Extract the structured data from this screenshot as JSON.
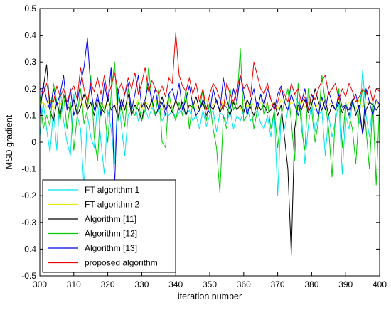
{
  "chart_data": {
    "type": "line",
    "title": "",
    "xlabel": "iteration number",
    "ylabel": "MSD gradient",
    "xlim": [
      300,
      400
    ],
    "ylim": [
      -0.5,
      0.5
    ],
    "xticks": [
      300,
      310,
      320,
      330,
      340,
      350,
      360,
      370,
      380,
      390,
      400
    ],
    "xtick_labels": [
      "300",
      "310",
      "320",
      "330",
      "340",
      "350",
      "360",
      "370",
      "380",
      "390",
      "400"
    ],
    "yticks": [
      -0.5,
      -0.4,
      -0.3,
      -0.2,
      -0.1,
      0,
      0.1,
      0.2,
      0.3,
      0.4,
      0.5
    ],
    "ytick_labels": [
      "-0.5",
      "-0.4",
      "-0.3",
      "-0.2",
      "-0.1",
      "0",
      "0.1",
      "0.2",
      "0.3",
      "0.4",
      "0.5"
    ],
    "grid": false,
    "legend_position": "bottom-left",
    "x_start": 300,
    "x_step": 1,
    "series": [
      {
        "name": "FT algorithm 1",
        "color": "#00e5ee",
        "values": [
          0.02,
          0.15,
          0.05,
          -0.04,
          0.12,
          -0.03,
          0.2,
          0.08,
          0.0,
          -0.05,
          0.18,
          0.1,
          0.05,
          -0.17,
          0.1,
          0.02,
          -0.02,
          0.15,
          0.0,
          -0.12,
          0.12,
          0.05,
          -0.08,
          0.18,
          0.06,
          -0.05,
          0.1,
          0.12,
          0.14,
          0.08,
          0.11,
          0.12,
          0.09,
          0.13,
          0.1,
          0.12,
          0.08,
          0.11,
          0.1,
          0.12,
          0.09,
          0.11,
          0.13,
          0.1,
          0.12,
          0.08,
          0.1,
          0.05,
          0.12,
          0.06,
          0.1,
          0.12,
          0.04,
          0.11,
          0.1,
          0.07,
          0.12,
          0.05,
          0.1,
          0.08,
          0.12,
          0.13,
          0.08,
          0.1,
          0.12,
          0.07,
          0.05,
          0.1,
          0.02,
          0.12,
          -0.2,
          0.1,
          0.05,
          0.12,
          0.22,
          0.18,
          0.15,
          0.1,
          -0.08,
          0.06,
          0.15,
          0.04,
          0.1,
          0.12,
          -0.05,
          0.1,
          0.02,
          0.08,
          0.15,
          -0.12,
          0.1,
          0.05,
          0.15,
          0.12,
          0.07,
          0.27,
          0.1,
          0.02,
          0.15,
          0.12,
          0.14
        ]
      },
      {
        "name": "FT algorithm 2",
        "color": "#e8e800",
        "values": [
          0.14,
          0.15,
          0.13,
          0.16,
          0.12,
          0.15,
          0.14,
          0.16,
          0.13,
          0.15,
          0.14,
          0.12,
          0.16,
          0.13,
          0.15,
          0.14,
          0.12,
          0.15,
          0.16,
          0.13,
          0.14,
          0.15,
          0.13,
          0.16,
          0.14,
          0.12,
          0.15,
          0.14,
          0.13,
          0.16,
          0.12,
          0.15,
          0.14,
          0.13,
          0.16,
          0.15,
          0.12,
          0.14,
          0.16,
          0.13,
          0.15,
          0.14,
          0.12,
          0.16,
          0.13,
          0.15,
          0.14,
          0.12,
          0.15,
          0.16,
          0.13,
          0.14,
          0.15,
          0.12,
          0.16,
          0.14,
          0.13,
          0.15,
          0.14,
          0.12,
          0.16,
          0.13,
          0.15,
          0.14,
          0.12,
          0.15,
          0.16,
          0.13,
          0.14,
          0.15,
          0.12,
          0.16,
          0.14,
          0.13,
          0.15,
          0.14,
          0.12,
          0.16,
          0.13,
          0.15,
          0.14,
          0.12,
          0.15,
          0.16,
          0.13,
          0.14,
          0.15,
          0.12,
          0.16,
          0.14,
          0.13,
          0.15,
          0.14,
          0.12,
          0.16,
          0.13,
          0.15,
          0.14,
          0.12,
          0.15,
          0.14
        ]
      },
      {
        "name": "Algorithm [11]",
        "color": "#000000",
        "values": [
          0.12,
          0.2,
          0.29,
          0.12,
          0.08,
          0.15,
          0.1,
          0.18,
          0.14,
          0.12,
          0.16,
          0.1,
          0.13,
          0.18,
          0.12,
          0.15,
          0.1,
          0.16,
          0.13,
          0.11,
          0.17,
          0.12,
          0.14,
          0.09,
          0.16,
          0.12,
          0.18,
          0.1,
          0.14,
          0.12,
          0.08,
          0.15,
          0.12,
          0.16,
          0.1,
          0.13,
          0.17,
          0.12,
          0.14,
          0.11,
          0.16,
          0.12,
          0.15,
          0.1,
          0.14,
          0.13,
          0.17,
          0.12,
          0.15,
          0.1,
          0.14,
          0.12,
          0.16,
          0.11,
          0.14,
          0.13,
          0.1,
          0.15,
          0.12,
          0.14,
          0.11,
          0.16,
          0.13,
          0.1,
          0.15,
          0.12,
          0.14,
          0.11,
          0.12,
          0.15,
          0.1,
          0.14,
          0.02,
          -0.1,
          -0.42,
          0.05,
          0.14,
          0.12,
          0.16,
          0.11,
          0.14,
          0.2,
          0.15,
          0.12,
          0.16,
          0.1,
          0.14,
          0.12,
          0.15,
          0.11,
          0.14,
          0.12,
          0.16,
          0.1,
          0.14,
          0.03,
          0.12,
          0.15,
          0.14,
          0.12,
          0.14
        ]
      },
      {
        "name": "Algorithm [12]",
        "color": "#00cc00",
        "values": [
          0.18,
          0.05,
          0.1,
          0.06,
          0.22,
          0.15,
          0.08,
          0.18,
          0.05,
          0.15,
          -0.03,
          0.1,
          0.2,
          0.07,
          0.12,
          0.25,
          0.02,
          -0.07,
          0.15,
          0.12,
          0.0,
          0.18,
          0.3,
          0.08,
          0.14,
          0.06,
          0.2,
          0.12,
          0.1,
          0.15,
          0.08,
          0.12,
          0.28,
          0.15,
          0.1,
          0.2,
          0.0,
          -0.02,
          0.18,
          0.12,
          0.08,
          0.15,
          0.1,
          0.2,
          0.05,
          0.15,
          0.1,
          0.12,
          0.2,
          0.08,
          0.15,
          0.05,
          -0.02,
          -0.19,
          0.1,
          0.05,
          0.2,
          0.12,
          0.15,
          0.35,
          0.08,
          0.1,
          0.15,
          0.05,
          0.12,
          0.18,
          0.1,
          0.15,
          0.05,
          0.12,
          -0.02,
          0.1,
          0.15,
          0.2,
          0.08,
          -0.07,
          0.22,
          0.05,
          -0.03,
          0.2,
          0.12,
          0.0,
          0.08,
          0.25,
          0.15,
          0.05,
          -0.13,
          0.1,
          0.2,
          -0.02,
          0.15,
          0.1,
          0.05,
          -0.08,
          0.12,
          0.2,
          0.05,
          -0.1,
          0.15,
          -0.16,
          0.15
        ]
      },
      {
        "name": "Algorithm [13]",
        "color": "#0000ee",
        "values": [
          0.1,
          0.22,
          0.16,
          0.12,
          0.2,
          0.14,
          0.18,
          0.25,
          0.12,
          0.2,
          0.1,
          0.15,
          0.22,
          0.28,
          0.39,
          0.2,
          0.12,
          0.18,
          0.1,
          0.22,
          0.15,
          0.28,
          -0.17,
          0.2,
          0.12,
          0.18,
          0.22,
          0.12,
          0.18,
          0.25,
          0.13,
          0.16,
          0.22,
          0.15,
          0.2,
          0.12,
          0.15,
          0.1,
          0.18,
          0.2,
          0.15,
          0.22,
          0.12,
          0.16,
          0.21,
          0.14,
          0.1,
          0.12,
          0.16,
          0.13,
          0.11,
          0.2,
          0.15,
          0.12,
          0.24,
          0.16,
          0.12,
          0.2,
          0.15,
          0.25,
          0.18,
          0.1,
          0.15,
          0.2,
          0.12,
          0.18,
          0.14,
          0.2,
          0.16,
          0.12,
          0.18,
          0.21,
          0.15,
          0.12,
          0.18,
          0.14,
          0.1,
          0.15,
          0.2,
          0.12,
          0.18,
          0.14,
          0.1,
          0.17,
          0.12,
          0.19,
          0.15,
          0.12,
          0.18,
          0.13,
          0.14,
          0.1,
          0.15,
          0.18,
          0.12,
          0.03,
          0.2,
          0.15,
          0.1,
          0.16,
          0.14
        ]
      },
      {
        "name": "proposed algorithm",
        "color": "#ee0000",
        "values": [
          0.2,
          0.18,
          0.22,
          0.16,
          0.15,
          0.21,
          0.17,
          0.2,
          0.15,
          0.19,
          0.21,
          0.16,
          0.28,
          0.2,
          0.15,
          0.22,
          0.19,
          0.24,
          0.18,
          0.25,
          0.17,
          0.21,
          0.26,
          0.19,
          0.22,
          0.18,
          0.24,
          0.2,
          0.26,
          0.18,
          0.22,
          0.28,
          0.19,
          0.23,
          0.2,
          0.18,
          0.21,
          0.17,
          0.24,
          0.22,
          0.41,
          0.25,
          0.21,
          0.19,
          0.24,
          0.18,
          0.22,
          0.15,
          0.2,
          0.12,
          0.18,
          0.22,
          0.2,
          0.16,
          0.12,
          0.22,
          0.18,
          0.15,
          0.2,
          0.25,
          0.2,
          0.22,
          0.17,
          0.3,
          0.25,
          0.2,
          0.18,
          0.22,
          0.16,
          0.12,
          0.15,
          0.2,
          0.18,
          0.15,
          0.22,
          0.18,
          0.2,
          0.15,
          0.17,
          0.12,
          0.18,
          0.16,
          0.2,
          0.23,
          0.25,
          0.18,
          0.2,
          0.22,
          0.16,
          0.2,
          0.17,
          0.22,
          0.19,
          0.15,
          0.17,
          0.2,
          0.18,
          0.21,
          0.15,
          0.2,
          0.19
        ]
      }
    ]
  }
}
